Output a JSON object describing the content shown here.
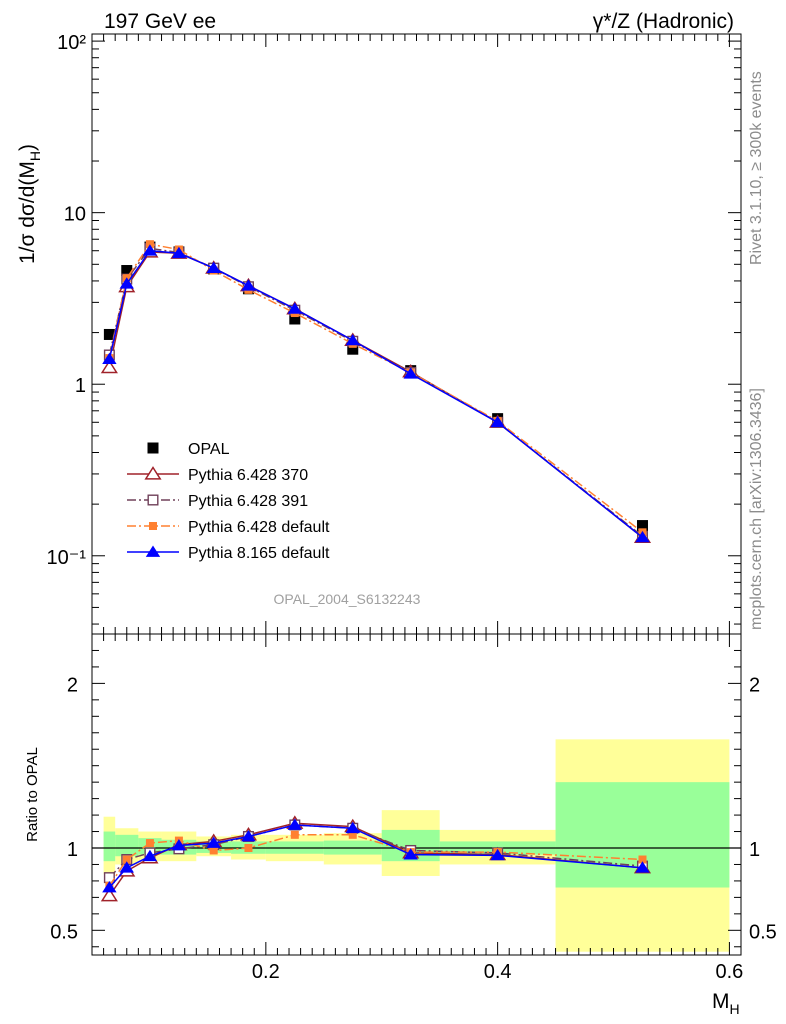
{
  "header": {
    "left": "197 GeV ee",
    "right": "γ*/Z (Hadronic)"
  },
  "side_labels": {
    "rivet": "Rivet 3.1.10, ≥ 300k events",
    "mcplots": "mcplots.cern.ch [arXiv:1306.3436]"
  },
  "watermark": "OPAL_2004_S6132243",
  "colors": {
    "opal": "#000000",
    "py370": "#a0222a",
    "py391": "#70405a",
    "pydefault": "#ff8030",
    "py8": "#0000ff",
    "band_inner": "#99ff99",
    "band_outer": "#ffff99"
  },
  "chart_data": [
    {
      "type": "line",
      "panel": "main",
      "yscale": "log",
      "ylabel": "1/σ dσ/d(M_H)",
      "xlim": [
        0.05,
        0.61
      ],
      "ylim": [
        0.035,
        110
      ],
      "yticks": [
        {
          "value": 100,
          "label": "10²"
        },
        {
          "value": 10,
          "label": "10"
        },
        {
          "value": 1,
          "label": "1"
        },
        {
          "value": 0.1,
          "label": "10⁻¹"
        }
      ],
      "x": [
        0.065,
        0.08,
        0.1,
        0.125,
        0.155,
        0.185,
        0.225,
        0.275,
        0.325,
        0.4,
        0.525
      ],
      "series": [
        {
          "name": "OPAL",
          "key": "opal",
          "style": "data",
          "marker": "square-filled",
          "values": [
            1.95,
            4.6,
            6.3,
            5.9,
            4.7,
            3.6,
            2.4,
            1.6,
            1.2,
            0.63,
            0.15
          ]
        },
        {
          "name": "Pythia 6.428 370",
          "key": "py370",
          "style": "solid",
          "marker": "triangle-open",
          "values": [
            1.25,
            3.7,
            5.9,
            5.8,
            4.75,
            3.75,
            2.75,
            1.8,
            1.18,
            0.6,
            0.128
          ]
        },
        {
          "name": "Pythia 6.428 391",
          "key": "py391",
          "style": "dashdot",
          "marker": "square-open",
          "values": [
            1.48,
            4.1,
            6.2,
            5.85,
            4.75,
            3.7,
            2.7,
            1.78,
            1.17,
            0.6,
            0.13
          ]
        },
        {
          "name": "Pythia 6.428 default",
          "key": "pydefault",
          "style": "dashdot",
          "marker": "square-filled",
          "values": [
            1.42,
            4.15,
            6.55,
            6.1,
            4.6,
            3.55,
            2.6,
            1.72,
            1.17,
            0.61,
            0.137
          ]
        },
        {
          "name": "Pythia 8.165 default",
          "key": "py8",
          "style": "solid",
          "marker": "triangle-filled",
          "values": [
            1.4,
            3.85,
            6.0,
            5.8,
            4.75,
            3.75,
            2.75,
            1.8,
            1.15,
            0.6,
            0.128
          ]
        }
      ]
    },
    {
      "type": "line",
      "panel": "ratio",
      "ylabel": "Ratio to OPAL",
      "xlabel": "M_H",
      "xlim": [
        0.05,
        0.61
      ],
      "ylim": [
        0.35,
        2.3
      ],
      "yticks": [
        {
          "value": 2,
          "label": "2"
        },
        {
          "value": 1,
          "label": "1"
        },
        {
          "value": 0.5,
          "label": "0.5"
        }
      ],
      "xticks": [
        {
          "value": 0.2,
          "label": "0.2"
        },
        {
          "value": 0.4,
          "label": "0.4"
        },
        {
          "value": 0.6,
          "label": "0.6"
        }
      ],
      "bins": [
        {
          "lo": 0.06,
          "hi": 0.07,
          "inner": [
            0.92,
            1.1
          ],
          "outer": [
            0.84,
            1.19
          ]
        },
        {
          "lo": 0.07,
          "hi": 0.09,
          "inner": [
            0.95,
            1.08
          ],
          "outer": [
            0.9,
            1.12
          ]
        },
        {
          "lo": 0.09,
          "hi": 0.11,
          "inner": [
            0.96,
            1.06
          ],
          "outer": [
            0.92,
            1.1
          ]
        },
        {
          "lo": 0.11,
          "hi": 0.14,
          "inner": [
            0.96,
            1.05
          ],
          "outer": [
            0.92,
            1.1
          ]
        },
        {
          "lo": 0.14,
          "hi": 0.17,
          "inner": [
            0.97,
            1.04
          ],
          "outer": [
            0.95,
            1.07
          ]
        },
        {
          "lo": 0.17,
          "hi": 0.2,
          "inner": [
            0.965,
            1.04
          ],
          "outer": [
            0.93,
            1.08
          ]
        },
        {
          "lo": 0.2,
          "hi": 0.25,
          "inner": [
            0.965,
            1.04
          ],
          "outer": [
            0.92,
            1.08
          ]
        },
        {
          "lo": 0.25,
          "hi": 0.3,
          "inner": [
            0.96,
            1.045
          ],
          "outer": [
            0.9,
            1.09
          ]
        },
        {
          "lo": 0.3,
          "hi": 0.35,
          "inner": [
            0.92,
            1.11
          ],
          "outer": [
            0.83,
            1.23
          ]
        },
        {
          "lo": 0.35,
          "hi": 0.45,
          "inner": [
            0.96,
            1.04
          ],
          "outer": [
            0.9,
            1.11
          ]
        },
        {
          "lo": 0.45,
          "hi": 0.6,
          "inner": [
            0.76,
            1.4
          ],
          "outer": [
            0.37,
            1.66
          ]
        }
      ],
      "x": [
        0.065,
        0.08,
        0.1,
        0.125,
        0.155,
        0.185,
        0.225,
        0.275,
        0.325,
        0.4,
        0.525
      ],
      "series": [
        {
          "name": "Pythia 6.428 370",
          "key": "py370",
          "style": "solid",
          "marker": "triangle-open",
          "values": [
            0.71,
            0.86,
            0.94,
            1.02,
            1.04,
            1.08,
            1.15,
            1.13,
            0.97,
            0.96,
            0.88
          ]
        },
        {
          "name": "Pythia 6.428 391",
          "key": "py391",
          "style": "dashdot",
          "marker": "square-open",
          "values": [
            0.82,
            0.93,
            0.97,
            0.995,
            1.02,
            1.07,
            1.14,
            1.12,
            0.985,
            0.97,
            0.89
          ]
        },
        {
          "name": "Pythia 6.428 default",
          "key": "pydefault",
          "style": "dashdot",
          "marker": "square-filled",
          "values": [
            0.77,
            0.93,
            1.03,
            1.045,
            0.985,
            1.0,
            1.08,
            1.08,
            0.975,
            0.975,
            0.93
          ]
        },
        {
          "name": "Pythia 8.165 default",
          "key": "py8",
          "style": "solid",
          "marker": "triangle-filled",
          "values": [
            0.76,
            0.88,
            0.95,
            1.015,
            1.03,
            1.07,
            1.14,
            1.12,
            0.96,
            0.955,
            0.88
          ]
        }
      ]
    }
  ]
}
